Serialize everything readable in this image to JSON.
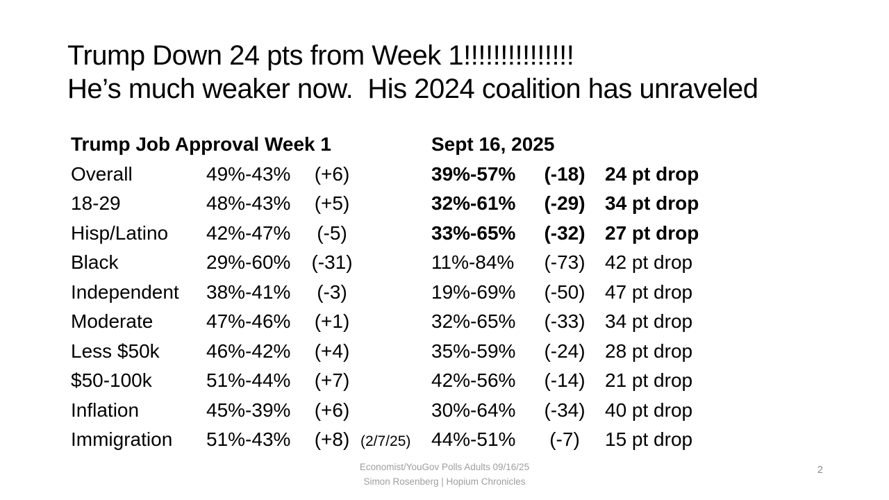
{
  "slide": {
    "background_color": "#ffffff",
    "text_color": "#000000",
    "muted_color": "#9e9e9e",
    "title": {
      "line1": "Trump Down 24 pts from Week 1!!!!!!!!!!!!!!!",
      "line2": "He’s much weaker now.  His 2024 coalition has unraveled"
    },
    "table": {
      "header_left": "Trump Job Approval Week 1",
      "header_right": "Sept 16, 2025",
      "rows": [
        {
          "label": "Overall",
          "week1": "49%-43%",
          "week1_net": "(+6)",
          "note": "",
          "sept16": "39%-57%",
          "sept16_net": "(-18)",
          "drop": "24 pt drop",
          "bold": true
        },
        {
          "label": "18-29",
          "week1": "48%-43%",
          "week1_net": "(+5)",
          "note": "",
          "sept16": "32%-61%",
          "sept16_net": "(-29)",
          "drop": "34 pt drop",
          "bold": true
        },
        {
          "label": "Hisp/Latino",
          "week1": "42%-47%",
          "week1_net": "(-5)",
          "note": "",
          "sept16": "33%-65%",
          "sept16_net": "(-32)",
          "drop": "27 pt drop",
          "bold": true
        },
        {
          "label": "Black",
          "week1": "29%-60%",
          "week1_net": "(-31)",
          "note": "",
          "sept16": "11%-84%",
          "sept16_net": "(-73)",
          "drop": "42 pt drop",
          "bold": false
        },
        {
          "label": "Independent",
          "week1": "38%-41%",
          "week1_net": "(-3)",
          "note": "",
          "sept16": "19%-69%",
          "sept16_net": "(-50)",
          "drop": "47 pt drop",
          "bold": false
        },
        {
          "label": "Moderate",
          "week1": "47%-46%",
          "week1_net": "(+1)",
          "note": "",
          "sept16": "32%-65%",
          "sept16_net": "(-33)",
          "drop": "34 pt drop",
          "bold": false
        },
        {
          "label": "Less $50k",
          "week1": "46%-42%",
          "week1_net": "(+4)",
          "note": "",
          "sept16": "35%-59%",
          "sept16_net": "(-24)",
          "drop": "28 pt drop",
          "bold": false
        },
        {
          "label": "$50-100k",
          "week1": "51%-44%",
          "week1_net": "(+7)",
          "note": "",
          "sept16": "42%-56%",
          "sept16_net": "(-14)",
          "drop": "21 pt drop",
          "bold": false
        },
        {
          "label": "Inflation",
          "week1": "45%-39%",
          "week1_net": "(+6)",
          "note": "",
          "sept16": "30%-64%",
          "sept16_net": "(-34)",
          "drop": "40 pt drop",
          "bold": false
        },
        {
          "label": "Immigration",
          "week1": "51%-43%",
          "week1_net": "(+8)",
          "note": "(2/7/25)",
          "sept16": "44%-51%",
          "sept16_net": "(-7)",
          "drop": "15 pt drop",
          "bold": false
        }
      ]
    },
    "footer": {
      "line1": "Economist/YouGov Polls Adults 09/16/25",
      "line2": "Simon Rosenberg | Hopium Chronicles"
    },
    "page_number": "2"
  }
}
